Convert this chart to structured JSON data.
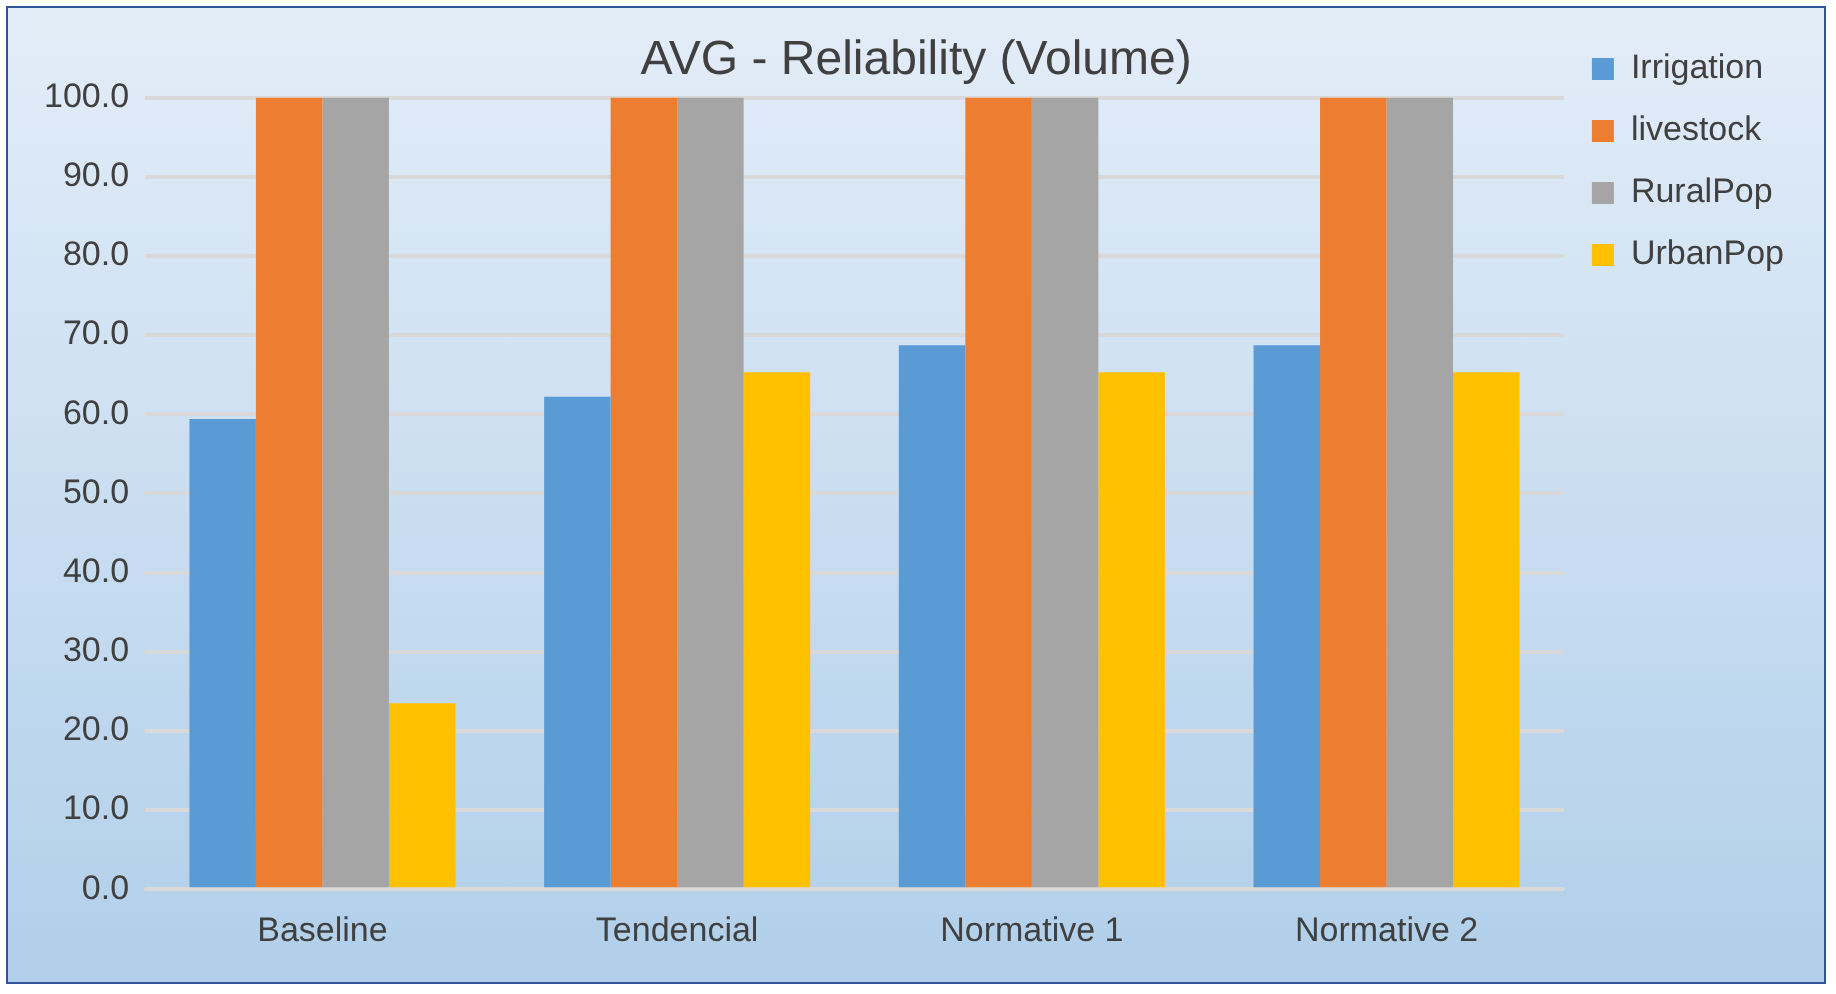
{
  "chart_data": {
    "type": "bar",
    "title": "AVG - Reliability (Volume)",
    "categories": [
      "Baseline",
      "Tendencial",
      "Normative 1",
      "Normative 2"
    ],
    "series": [
      {
        "name": "Irrigation",
        "color": "#5b9bd5",
        "values": [
          59.4,
          62.2,
          68.7,
          68.7
        ]
      },
      {
        "name": "livestock",
        "color": "#ed7d31",
        "values": [
          100,
          100,
          100,
          100
        ]
      },
      {
        "name": "RuralPop",
        "color": "#a5a5a5",
        "values": [
          100,
          100,
          100,
          100
        ]
      },
      {
        "name": "UrbanPop",
        "color": "#ffc000",
        "values": [
          23.5,
          65.3,
          65.3,
          65.3
        ]
      }
    ],
    "ylim": [
      0,
      100
    ],
    "yticks": [
      {
        "value": 0,
        "label": "0.0"
      },
      {
        "value": 10,
        "label": "10.0"
      },
      {
        "value": 20,
        "label": "20.0"
      },
      {
        "value": 30,
        "label": "30.0"
      },
      {
        "value": 40,
        "label": "40.0"
      },
      {
        "value": 50,
        "label": "50.0"
      },
      {
        "value": 60,
        "label": "60.0"
      },
      {
        "value": 70,
        "label": "70.0"
      },
      {
        "value": 80,
        "label": "80.0"
      },
      {
        "value": 90,
        "label": "90.0"
      },
      {
        "value": 100,
        "label": "100.0"
      }
    ],
    "grid": "y",
    "legend": "top right"
  }
}
